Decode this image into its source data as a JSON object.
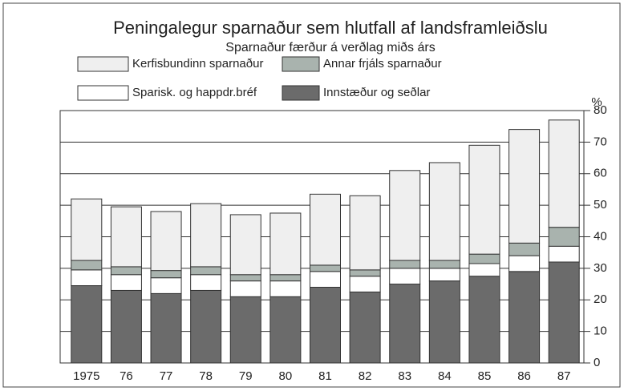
{
  "chart_data": {
    "type": "stacked_bar",
    "title": "Peningalegur sparnaður sem hlutfall af landsframleiðslu",
    "subtitle": "Sparnaður færður á verðlag miðs árs",
    "y_unit": "%",
    "categories": [
      "1975",
      "76",
      "77",
      "78",
      "79",
      "80",
      "81",
      "82",
      "83",
      "84",
      "85",
      "86",
      "87"
    ],
    "series": [
      {
        "name": "Innstæður og seðlar",
        "color": "#6b6b6b",
        "values": [
          24.5,
          23,
          22,
          23,
          21,
          21,
          24,
          22.5,
          25,
          26,
          27.5,
          29,
          32
        ]
      },
      {
        "name": "Sparisk. og happdr.bréf",
        "color": "#ffffff",
        "values": [
          5,
          5,
          5,
          5,
          5,
          5,
          5,
          5,
          5,
          4,
          4,
          5,
          5
        ]
      },
      {
        "name": "Annar frjáls sparnaður",
        "color": "#a9b3ae",
        "values": [
          3,
          2.5,
          2.3,
          2.5,
          2,
          2,
          2,
          2,
          2.5,
          2.5,
          3,
          4,
          6
        ]
      },
      {
        "name": "Kerfisbundinn sparnaður",
        "color": "#efefef",
        "values": [
          19.5,
          19,
          18.7,
          20,
          19,
          19.5,
          22.5,
          23.5,
          28.5,
          31,
          34.5,
          36,
          34
        ]
      }
    ],
    "ylim": [
      0,
      80
    ],
    "yticks": [
      0,
      10,
      20,
      30,
      40,
      50,
      60,
      70,
      80
    ],
    "grid": true
  }
}
